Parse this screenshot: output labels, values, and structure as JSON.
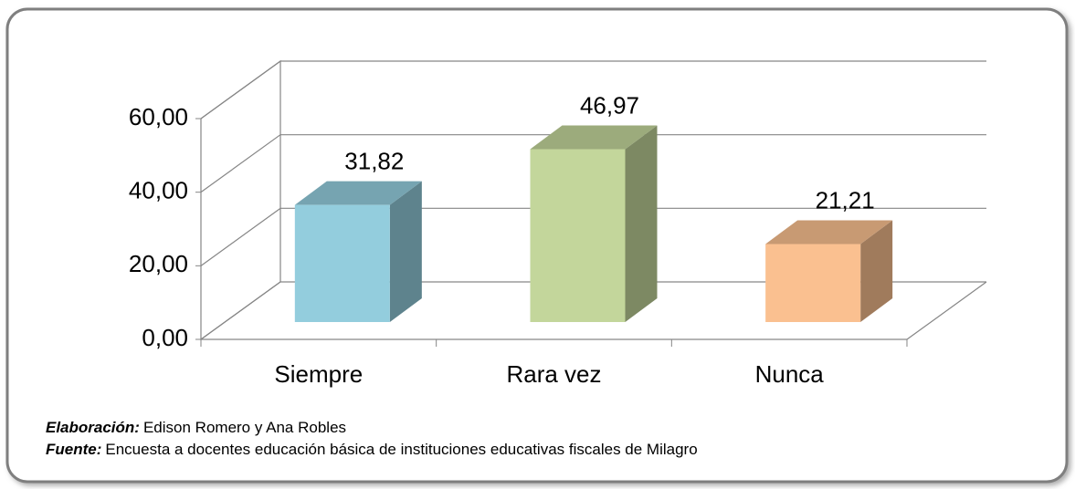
{
  "chart_data": {
    "type": "bar3d",
    "categories": [
      "Siempre",
      "Rara vez",
      "Nunca"
    ],
    "values": [
      31.82,
      46.97,
      21.21
    ],
    "value_labels": [
      "31,82",
      "46,97",
      "21,21"
    ],
    "colors": [
      "#93cddd",
      "#c3d69b",
      "#fac090"
    ],
    "ylim": [
      0,
      60
    ],
    "yticks": [
      {
        "value": 0,
        "label": "0,00"
      },
      {
        "value": 20,
        "label": "20,00"
      },
      {
        "value": 40,
        "label": "40,00"
      },
      {
        "value": 60,
        "label": "60,00"
      }
    ],
    "grid": true
  },
  "notes": [
    {
      "label": "Elaboración:",
      "text": "Edison Romero y Ana Robles"
    },
    {
      "label": "Fuente:",
      "text": "Encuesta a docentes educación básica de instituciones  educativas fiscales de Milagro"
    }
  ]
}
